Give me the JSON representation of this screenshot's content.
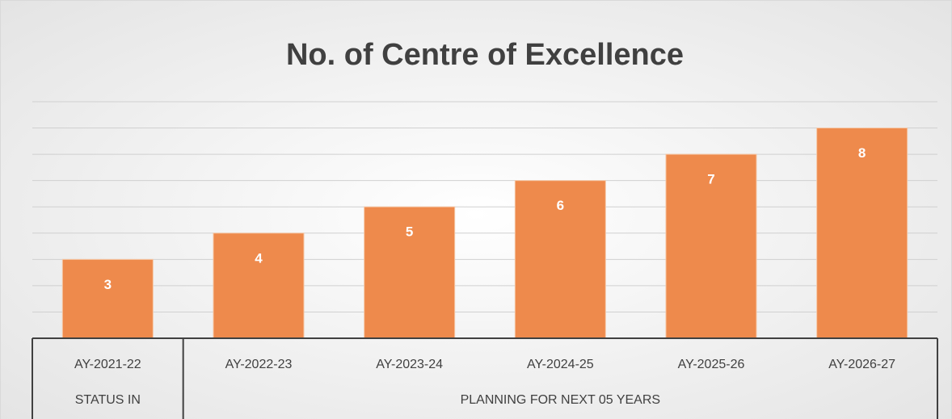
{
  "chart_data": {
    "type": "bar",
    "title": "No. of Centre of Excellence",
    "groups": [
      {
        "label": "STATUS IN",
        "categories": [
          "AY-2021-22"
        ],
        "values": [
          3
        ]
      },
      {
        "label": "PLANNING FOR NEXT 05 YEARS",
        "categories": [
          "AY-2022-23",
          "AY-2023-24",
          "AY-2024-25",
          "AY-2025-26",
          "AY-2026-27"
        ],
        "values": [
          4,
          5,
          6,
          7,
          8
        ]
      }
    ],
    "color": "#ee8a4c",
    "ylim": [
      0,
      9
    ],
    "yticks": [
      0,
      1,
      2,
      3,
      4,
      5,
      6,
      7,
      8,
      9
    ],
    "grid": true
  }
}
